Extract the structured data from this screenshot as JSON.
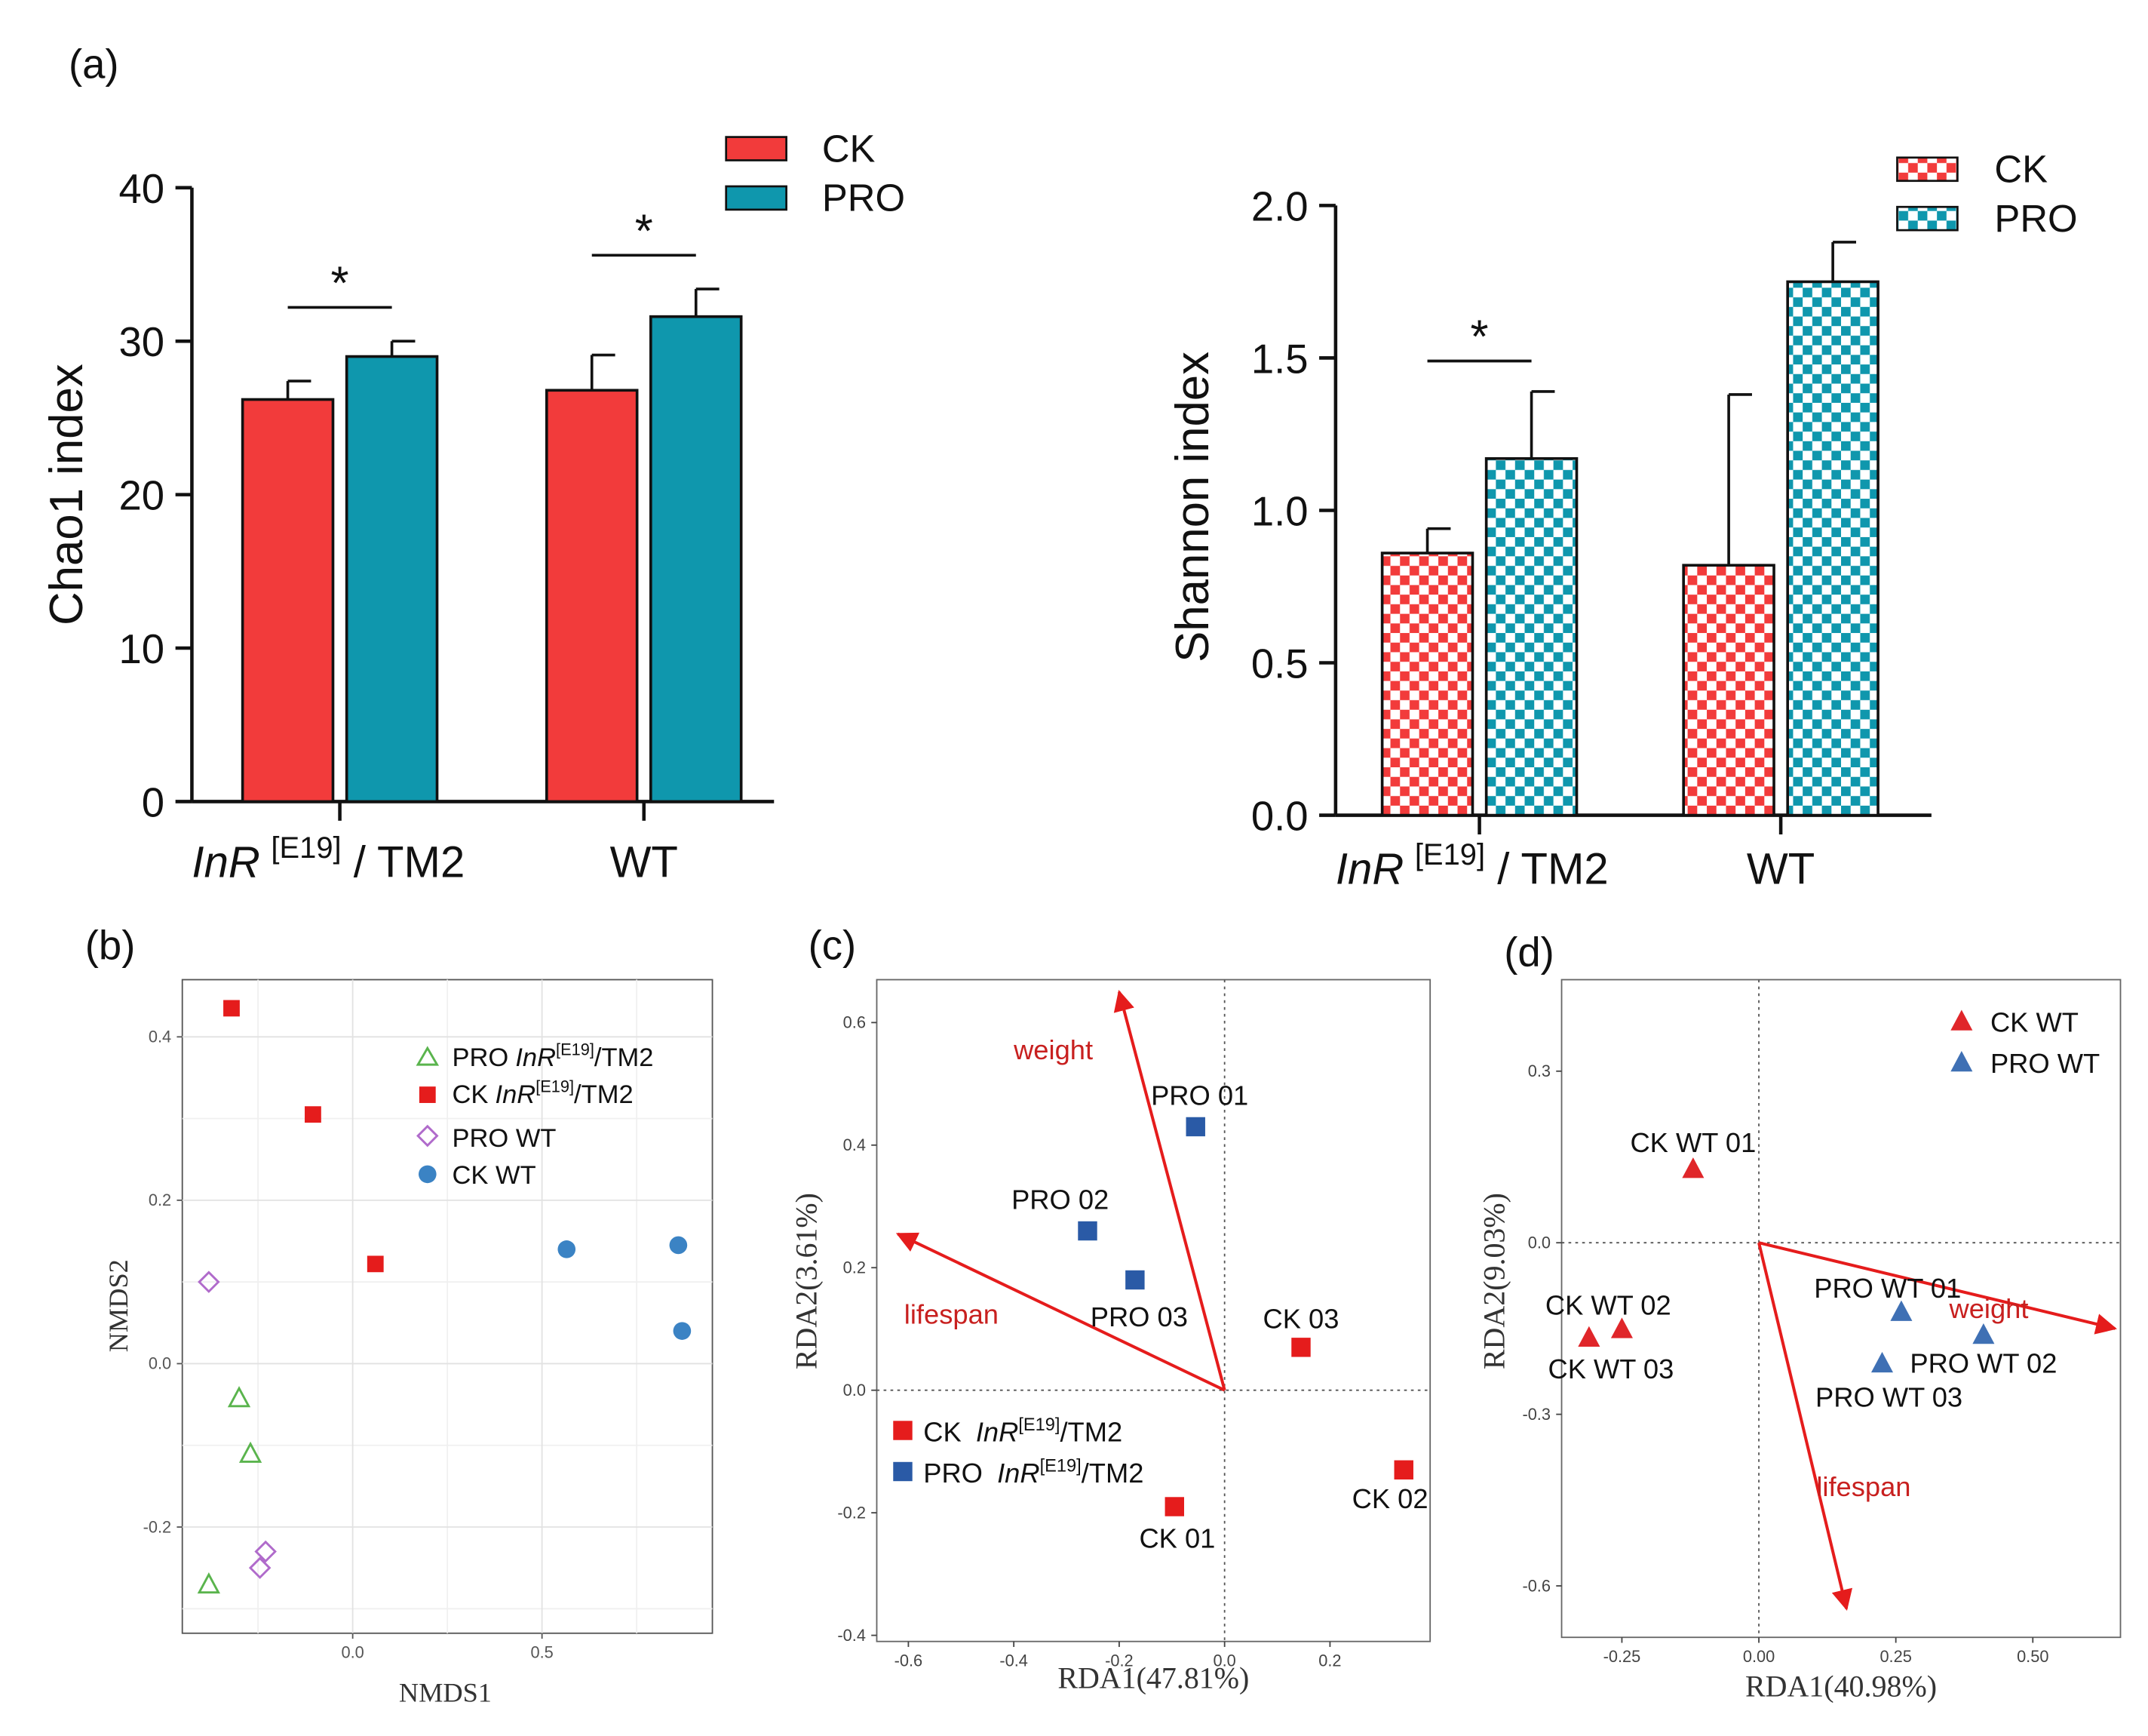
{
  "colors": {
    "ck_red": "#f23b3b",
    "pro_teal": "#0f97ad",
    "rda_red": "#e51c1c",
    "rda_blue": "#2a5aa6",
    "tri_red": "#e0262a",
    "tri_blue": "#3f70b4",
    "green": "#5ab44d",
    "purple": "#b06bcb",
    "dot_blue": "#3b83c4"
  },
  "chart_data": [
    {
      "panel": "(a)",
      "type": "bar",
      "ylabel": "Chao1 index",
      "ylim": [
        0,
        40
      ],
      "yticks": [
        0,
        10,
        20,
        30,
        40
      ],
      "categories": [
        "InR",
        "WT"
      ],
      "category_sup": [
        "[E19]",
        ""
      ],
      "category_suffix": [
        " / TM2",
        ""
      ],
      "series": [
        {
          "name": "CK",
          "values": [
            26.2,
            26.8
          ],
          "errors": [
            1.2,
            2.3
          ]
        },
        {
          "name": "PRO",
          "values": [
            29.0,
            31.6
          ],
          "errors": [
            1.0,
            1.8
          ]
        }
      ],
      "significance": [
        "*",
        "*"
      ],
      "legend": [
        "CK",
        "PRO"
      ]
    },
    {
      "type": "bar",
      "pattern": "checkered",
      "ylabel": "Shannon index",
      "ylim": [
        0,
        2.0
      ],
      "yticks": [
        "0.0",
        "0.5",
        "1.0",
        "1.5",
        "2.0"
      ],
      "categories": [
        "InR",
        "WT"
      ],
      "category_sup": [
        "[E19]",
        ""
      ],
      "category_suffix": [
        " / TM2",
        ""
      ],
      "series": [
        {
          "name": "CK",
          "values": [
            0.86,
            0.82
          ],
          "errors": [
            0.08,
            0.56
          ]
        },
        {
          "name": "PRO",
          "values": [
            1.17,
            1.75
          ],
          "errors": [
            0.22,
            0.13
          ]
        }
      ],
      "significance": [
        "*",
        ""
      ],
      "legend": [
        "CK",
        "PRO"
      ]
    },
    {
      "panel": "(b)",
      "type": "scatter",
      "xlabel": "NMDS1",
      "ylabel": "NMDS2",
      "xlim": [
        -0.45,
        0.95
      ],
      "ylim": [
        -0.33,
        0.47
      ],
      "xticks": [
        "0.0",
        "0.5"
      ],
      "yticks": [
        "-0.2",
        "0.0",
        "0.2",
        "0.4"
      ],
      "series": [
        {
          "name": "PRO",
          "italic": "InR",
          "sup": "[E19]",
          "suffix": "/TM2",
          "marker": "open-triangle",
          "color": "#5ab44d",
          "x": [
            -0.3,
            -0.27,
            -0.38
          ],
          "y": [
            -0.042,
            -0.11,
            -0.27
          ]
        },
        {
          "name": "CK",
          "italic": "InR",
          "sup": "[E19]",
          "suffix": "/TM2",
          "marker": "square",
          "color": "#e51c1c",
          "x": [
            -0.32,
            -0.105,
            0.06
          ],
          "y": [
            0.435,
            0.305,
            0.122
          ]
        },
        {
          "name": "PRO WT",
          "italic": "",
          "sup": "",
          "suffix": "",
          "marker": "open-diamond",
          "color": "#b06bcb",
          "x": [
            -0.38,
            -0.23,
            -0.245
          ],
          "y": [
            0.1,
            -0.23,
            -0.25
          ]
        },
        {
          "name": "CK WT",
          "italic": "",
          "sup": "",
          "suffix": "",
          "marker": "circle",
          "color": "#3b83c4",
          "x": [
            0.565,
            0.86,
            0.87
          ],
          "y": [
            0.14,
            0.145,
            0.04
          ]
        }
      ]
    },
    {
      "panel": "(c)",
      "type": "scatter",
      "xlabel": "RDA1(47.81%)",
      "ylabel": "RDA2(3.61%)",
      "xlim": [
        -0.66,
        0.39
      ],
      "ylim": [
        -0.41,
        0.67
      ],
      "xticks": [
        "-0.6",
        "-0.4",
        "-0.2",
        "0.0",
        "0.2"
      ],
      "yticks": [
        "-0.4",
        "-0.2",
        "0.0",
        "0.2",
        "0.4",
        "0.6"
      ],
      "points": [
        {
          "label": "PRO 01",
          "x": -0.055,
          "y": 0.43,
          "group": "PRO"
        },
        {
          "label": "PRO 02",
          "x": -0.26,
          "y": 0.26,
          "group": "PRO"
        },
        {
          "label": "PRO 03",
          "x": -0.17,
          "y": 0.18,
          "group": "PRO"
        },
        {
          "label": "CK 03",
          "x": 0.145,
          "y": 0.07,
          "group": "CK"
        },
        {
          "label": "CK 02",
          "x": 0.34,
          "y": -0.13,
          "group": "CK"
        },
        {
          "label": "CK 01",
          "x": -0.095,
          "y": -0.19,
          "group": "CK"
        }
      ],
      "arrows": [
        {
          "label": "weight",
          "x": -0.2,
          "y": 0.65
        },
        {
          "label": "lifespan",
          "x": -0.62,
          "y": 0.255
        }
      ],
      "legend": [
        {
          "prefix": "CK ",
          "italic": "InR",
          "sup": "[E19]",
          "suffix": "/TM2",
          "color": "#e51c1c"
        },
        {
          "prefix": "PRO ",
          "italic": "InR",
          "sup": "[E19]",
          "suffix": "/TM2",
          "color": "#2a5aa6"
        }
      ]
    },
    {
      "panel": "(d)",
      "type": "scatter",
      "xlabel": "RDA1(40.98%)",
      "ylabel": "RDA2(9.03%)",
      "xlim": [
        -0.36,
        0.66
      ],
      "ylim": [
        -0.69,
        0.46
      ],
      "xticks": [
        "-0.25",
        "0.00",
        "0.25",
        "0.50"
      ],
      "yticks": [
        "-0.6",
        "-0.3",
        "0.0",
        "0.3"
      ],
      "points": [
        {
          "label": "CK WT 01",
          "x": -0.12,
          "y": 0.13,
          "group": "CK"
        },
        {
          "label": "CK WT 02",
          "x": -0.25,
          "y": -0.15,
          "group": "CK"
        },
        {
          "label": "CK WT 03",
          "x": -0.31,
          "y": -0.165,
          "group": "CK"
        },
        {
          "label": "PRO WT 01",
          "x": 0.26,
          "y": -0.12,
          "group": "PRO"
        },
        {
          "label": "PRO WT 02",
          "x": 0.41,
          "y": -0.16,
          "group": "PRO"
        },
        {
          "label": "PRO WT 03",
          "x": 0.225,
          "y": -0.21,
          "group": "PRO"
        }
      ],
      "arrows": [
        {
          "label": "weight",
          "x": 0.65,
          "y": -0.15
        },
        {
          "label": "lifespan",
          "x": 0.16,
          "y": -0.64
        }
      ],
      "legend": [
        {
          "label": "CK WT",
          "color": "#e0262a"
        },
        {
          "label": "PRO WT",
          "color": "#3f70b4"
        }
      ]
    }
  ]
}
